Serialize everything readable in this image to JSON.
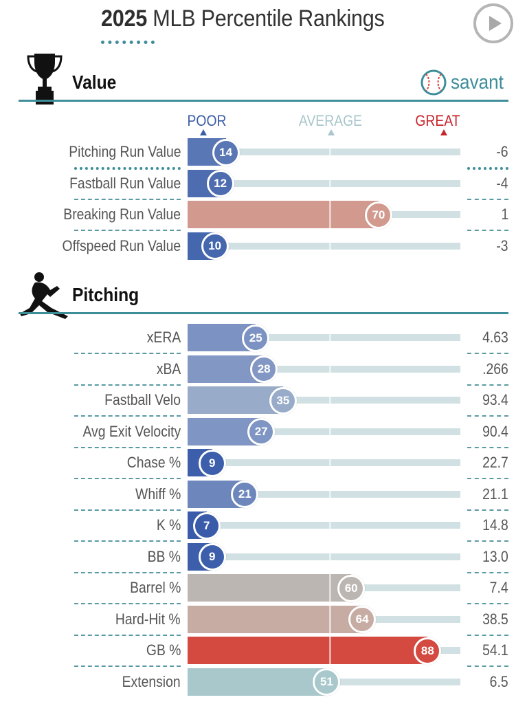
{
  "header": {
    "year": "2025",
    "title": "MLB Percentile Rankings",
    "play_icon": "play-icon"
  },
  "brand": {
    "name": "savant",
    "color": "#3e8e9a"
  },
  "scale": {
    "poor": "POOR",
    "average": "AVERAGE",
    "great": "GREAT",
    "poor_color": "#3b5ea8",
    "average_color": "#a9c6cb",
    "great_color": "#c8252c"
  },
  "sections": [
    {
      "title": "Value",
      "icon": "trophy-icon"
    },
    {
      "title": "Pitching",
      "icon": "pitcher-icon"
    }
  ],
  "chart_data": {
    "type": "bar",
    "title": "2025 MLB Percentile Rankings",
    "xlim": [
      0,
      100
    ],
    "scale_labels": [
      "POOR",
      "AVERAGE",
      "GREAT"
    ],
    "groups": [
      {
        "name": "Value",
        "metrics": [
          {
            "label": "Pitching Run Value",
            "percentile": 14,
            "value": "-6",
            "color": "#5a77b5"
          },
          {
            "label": "Fastball Run Value",
            "percentile": 12,
            "value": "-4",
            "color": "#4e6db0"
          },
          {
            "label": "Breaking Run Value",
            "percentile": 70,
            "value": "1",
            "color": "#d29a8e"
          },
          {
            "label": "Offspeed Run Value",
            "percentile": 10,
            "value": "-3",
            "color": "#4467ae"
          }
        ]
      },
      {
        "name": "Pitching",
        "metrics": [
          {
            "label": "xERA",
            "percentile": 25,
            "value": "4.63",
            "color": "#7b92c2"
          },
          {
            "label": "xBA",
            "percentile": 28,
            "value": ".266",
            "color": "#8397c4"
          },
          {
            "label": "Fastball Velo",
            "percentile": 35,
            "value": "93.4",
            "color": "#98acca"
          },
          {
            "label": "Avg Exit Velocity",
            "percentile": 27,
            "value": "90.4",
            "color": "#7f95c3"
          },
          {
            "label": "Chase %",
            "percentile": 9,
            "value": "22.7",
            "color": "#3d5fab"
          },
          {
            "label": "Whiff %",
            "percentile": 21,
            "value": "21.1",
            "color": "#6d87bd"
          },
          {
            "label": "K %",
            "percentile": 7,
            "value": "14.8",
            "color": "#395ba9"
          },
          {
            "label": "BB %",
            "percentile": 9,
            "value": "13.0",
            "color": "#3d5fab"
          },
          {
            "label": "Barrel %",
            "percentile": 60,
            "value": "7.4",
            "color": "#bbb6b2"
          },
          {
            "label": "Hard-Hit %",
            "percentile": 64,
            "value": "38.5",
            "color": "#c7aca4"
          },
          {
            "label": "GB %",
            "percentile": 88,
            "value": "54.1",
            "color": "#d44a40"
          },
          {
            "label": "Extension",
            "percentile": 51,
            "value": "6.5",
            "color": "#a8c8cb"
          }
        ]
      }
    ]
  }
}
